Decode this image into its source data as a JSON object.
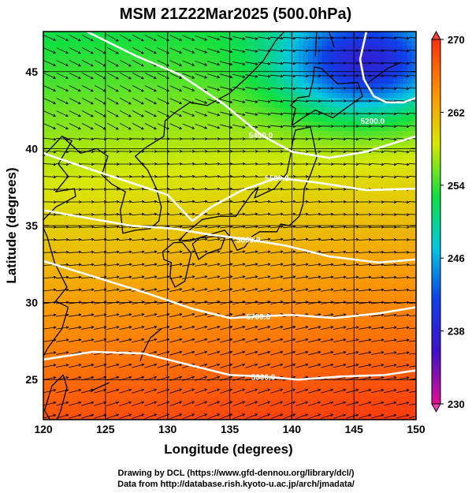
{
  "title": "MSM 21Z22Mar2025 (500.0hPa)",
  "map": {
    "xlabel": "Longitude (degrees)",
    "ylabel": "Latitude  (degrees)",
    "xlim": [
      120,
      150
    ],
    "ylim": [
      22.4,
      47.6
    ],
    "xticks": [
      120,
      125,
      130,
      135,
      140,
      145,
      150
    ],
    "yticks": [
      25,
      30,
      35,
      40,
      45
    ],
    "grid_lon_step": 5,
    "grid_lat_step": 5,
    "field": "temperature (K), shaded",
    "contour_field": "geopotential height (m)",
    "contours": [
      {
        "value": 5200,
        "label": "5200.0",
        "label_at": [
          146.5,
          41.8
        ]
      },
      {
        "value": 5400,
        "label": "5400.0",
        "label_at": [
          137.5,
          40.9
        ]
      },
      {
        "value": 5500,
        "label": "5500.0",
        "label_at": [
          138.8,
          38.1
        ]
      },
      {
        "value": 5600,
        "label": "5600.0",
        "label_at": [
          136.5,
          34.1
        ]
      },
      {
        "value": 5700,
        "label": "5700.0",
        "label_at": [
          137.3,
          29.1
        ]
      },
      {
        "value": 5800,
        "label": "5800.0",
        "label_at": [
          137.7,
          25.2
        ]
      }
    ]
  },
  "colorbar": {
    "min": 230,
    "max": 270,
    "tick_labels": [
      "270",
      "262",
      "254",
      "246",
      "238",
      "230"
    ],
    "tick_values": [
      270,
      262,
      254,
      246,
      238,
      230
    ],
    "colors": [
      "#e01090",
      "#4010c8",
      "#1040e8",
      "#00c8e0",
      "#10e040",
      "#d8e800",
      "#ff9000",
      "#ff3010"
    ]
  },
  "credits": {
    "line1": "Drawing by DCL (https://www.gfd-dennou.org/library/dcl/)",
    "line2": "Data from http://database.rish.kyoto-u.ac.jp/arch/jmadata/"
  }
}
